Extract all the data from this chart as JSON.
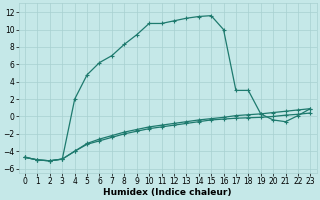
{
  "xlabel": "Humidex (Indice chaleur)",
  "xlim": [
    -0.5,
    23.5
  ],
  "ylim": [
    -6.5,
    13.0
  ],
  "yticks": [
    -6,
    -4,
    -2,
    0,
    2,
    4,
    6,
    8,
    10,
    12
  ],
  "xticks": [
    0,
    1,
    2,
    3,
    4,
    5,
    6,
    7,
    8,
    9,
    10,
    11,
    12,
    13,
    14,
    15,
    16,
    17,
    18,
    19,
    20,
    21,
    22,
    23
  ],
  "bg_color": "#c5e8e8",
  "grid_color": "#a8d0d0",
  "line_color": "#1e7a6e",
  "line1_x": [
    0,
    1,
    2,
    3,
    4,
    5,
    6,
    7,
    8,
    9,
    10,
    11,
    12,
    13,
    14,
    15,
    16,
    17,
    18,
    19,
    20,
    21,
    22,
    23
  ],
  "line1_y": [
    -4.7,
    -5.0,
    -5.1,
    -4.9,
    2.0,
    4.8,
    6.2,
    7.0,
    8.3,
    9.4,
    10.7,
    10.7,
    11.0,
    11.3,
    11.5,
    11.6,
    10.0,
    3.0,
    3.0,
    0.3,
    -0.4,
    -0.6,
    0.1,
    0.9
  ],
  "line2_x": [
    0,
    1,
    2,
    3,
    4,
    5,
    6,
    7,
    8,
    9,
    10,
    11,
    12,
    13,
    14,
    15,
    16,
    17,
    18,
    19,
    20,
    21,
    22,
    23
  ],
  "line2_y": [
    -4.7,
    -5.0,
    -5.1,
    -4.9,
    -4.0,
    -3.2,
    -2.8,
    -2.4,
    -2.0,
    -1.7,
    -1.4,
    -1.2,
    -1.0,
    -0.8,
    -0.6,
    -0.4,
    -0.3,
    -0.2,
    -0.15,
    -0.1,
    0.0,
    0.15,
    0.25,
    0.4
  ],
  "line3_x": [
    0,
    1,
    2,
    3,
    4,
    5,
    6,
    7,
    8,
    9,
    10,
    11,
    12,
    13,
    14,
    15,
    16,
    17,
    18,
    19,
    20,
    21,
    22,
    23
  ],
  "line3_y": [
    -4.7,
    -5.0,
    -5.1,
    -4.9,
    -4.0,
    -3.1,
    -2.6,
    -2.2,
    -1.8,
    -1.5,
    -1.2,
    -1.0,
    -0.8,
    -0.6,
    -0.4,
    -0.25,
    -0.1,
    0.1,
    0.2,
    0.3,
    0.45,
    0.6,
    0.75,
    0.9
  ],
  "marker": "+",
  "markersize": 3,
  "markeredgewidth": 0.8,
  "linewidth": 0.9,
  "tick_fontsize": 5.5,
  "label_fontsize": 6.5
}
